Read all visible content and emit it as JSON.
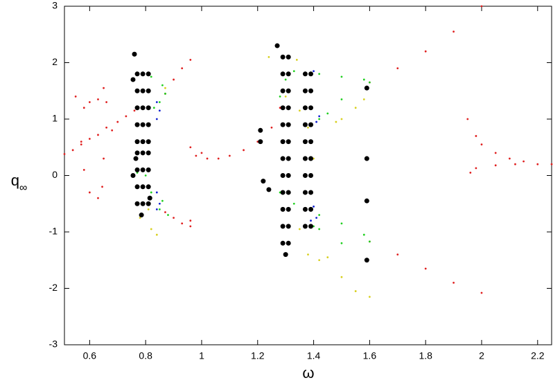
{
  "chart_data": {
    "type": "scatter",
    "xlabel": "ω",
    "ylabel": "q",
    "ylabel_subscript": "∞",
    "xlim": [
      0.51,
      2.25
    ],
    "ylim": [
      -3,
      3
    ],
    "xticks": [
      0.6,
      0.8,
      1,
      1.2,
      1.4,
      1.6,
      1.8,
      2,
      2.2
    ],
    "yticks": [
      -3,
      -2,
      -1,
      0,
      1,
      2,
      3
    ],
    "grid": false,
    "series": [
      {
        "color": "#e02020",
        "x": [
          0.51,
          0.54,
          0.57,
          0.6,
          0.63,
          0.66,
          0.7,
          0.73,
          0.76,
          0.55,
          0.57,
          0.58,
          0.6,
          0.63,
          0.645,
          0.65,
          0.58,
          0.6,
          0.63,
          0.65,
          0.66,
          0.68,
          0.87,
          0.9,
          0.93,
          0.96,
          0.87,
          0.9,
          0.93,
          0.96,
          0.96,
          0.96,
          0.98,
          1.0,
          1.02,
          1.06,
          1.1,
          1.15,
          1.2,
          1.25,
          1.28,
          1.6,
          1.7,
          1.8,
          1.9,
          2.0,
          1.6,
          1.7,
          1.8,
          1.9,
          2.0,
          1.95,
          1.98,
          2.0,
          2.05,
          2.1,
          2.15,
          2.2,
          2.25,
          1.96,
          1.98,
          2.05,
          2.12
        ],
        "values": [
          0.38,
          0.45,
          0.55,
          0.65,
          0.72,
          0.85,
          0.95,
          1.05,
          1.15,
          1.4,
          0.6,
          0.1,
          -0.3,
          -0.4,
          -0.2,
          0.3,
          1.2,
          1.3,
          1.35,
          1.55,
          1.3,
          0.8,
          1.45,
          1.7,
          1.9,
          2.05,
          -0.65,
          -0.75,
          -0.85,
          -0.9,
          -0.8,
          0.5,
          0.35,
          0.4,
          0.3,
          0.3,
          0.35,
          0.45,
          0.6,
          0.85,
          1.2,
          1.65,
          1.9,
          2.2,
          2.55,
          3.0,
          -1.17,
          -1.4,
          -1.65,
          -1.9,
          -2.08,
          1.0,
          0.7,
          0.55,
          0.4,
          0.3,
          0.25,
          0.2,
          0.2,
          0.05,
          0.13,
          0.18,
          0.2
        ]
      },
      {
        "color": "#20d020",
        "x": [
          0.82,
          0.86,
          0.87,
          0.85,
          0.83,
          0.77,
          0.8,
          0.82,
          0.86,
          0.88,
          0.85,
          1.3,
          1.28,
          1.33,
          1.42,
          1.5,
          1.58,
          1.6,
          1.5,
          1.45,
          1.42,
          1.28,
          1.33,
          1.42,
          1.5,
          1.58,
          1.6,
          1.5,
          1.42,
          1.4
        ],
        "values": [
          1.75,
          1.6,
          1.45,
          1.3,
          1.2,
          0.05,
          0.0,
          -0.3,
          -0.45,
          -0.7,
          -0.6,
          1.7,
          1.4,
          1.85,
          1.8,
          1.75,
          1.7,
          1.65,
          1.35,
          1.1,
          1.0,
          -0.3,
          -0.5,
          -0.7,
          -0.85,
          -1.05,
          -1.17,
          -1.2,
          -0.95,
          -0.9
        ]
      },
      {
        "color": "#1020d0",
        "x": [
          0.84,
          0.85,
          0.84,
          0.84,
          0.85,
          0.84,
          1.4,
          1.42,
          1.41,
          1.4,
          1.41,
          1.39
        ],
        "values": [
          1.0,
          1.15,
          1.3,
          -0.3,
          -0.5,
          -0.6,
          1.85,
          1.05,
          0.95,
          -0.55,
          -0.75,
          -0.8
        ]
      },
      {
        "color": "#d8d020",
        "x": [
          0.78,
          0.82,
          0.84,
          0.81,
          1.24,
          1.3,
          1.34,
          1.35,
          1.38,
          1.4,
          1.35,
          1.38,
          1.42,
          1.45,
          1.5,
          1.55,
          1.58,
          1.5,
          1.55,
          1.6,
          0.87,
          1.48
        ],
        "values": [
          -0.75,
          -0.95,
          -1.05,
          -0.6,
          2.1,
          1.4,
          2.05,
          1.15,
          0.85,
          0.3,
          -0.95,
          -1.4,
          -1.5,
          -1.45,
          1.0,
          1.2,
          1.35,
          -1.8,
          -2.05,
          -2.15,
          1.55,
          0.95
        ]
      },
      {
        "color": "#000000",
        "x": [
          0.77,
          0.77,
          0.77,
          0.77,
          0.77,
          0.77,
          0.77,
          0.77,
          0.77,
          0.79,
          0.79,
          0.79,
          0.79,
          0.79,
          0.79,
          0.79,
          0.79,
          0.79,
          0.81,
          0.81,
          0.81,
          0.81,
          0.81,
          0.81,
          0.81,
          0.81,
          0.81,
          0.76,
          0.755,
          0.765,
          0.755,
          0.815,
          0.785,
          1.29,
          1.29,
          1.29,
          1.29,
          1.29,
          1.29,
          1.29,
          1.29,
          1.29,
          1.29,
          1.29,
          1.29,
          1.31,
          1.31,
          1.31,
          1.31,
          1.31,
          1.31,
          1.31,
          1.31,
          1.31,
          1.31,
          1.31,
          1.31,
          1.27,
          1.3,
          1.37,
          1.37,
          1.37,
          1.37,
          1.37,
          1.37,
          1.37,
          1.37,
          1.37,
          1.37,
          1.39,
          1.39,
          1.39,
          1.39,
          1.39,
          1.39,
          1.39,
          1.39,
          1.39,
          1.39,
          1.21,
          1.21,
          1.22,
          1.59,
          1.59,
          1.59,
          1.59,
          1.24
        ],
        "values": [
          1.8,
          1.5,
          1.2,
          0.9,
          0.6,
          0.4,
          0.1,
          -0.2,
          -0.5,
          1.8,
          1.5,
          1.2,
          0.9,
          0.6,
          0.4,
          0.1,
          -0.2,
          -0.5,
          1.8,
          1.5,
          1.2,
          0.9,
          0.6,
          0.4,
          0.1,
          -0.2,
          -0.5,
          2.15,
          1.7,
          0.3,
          0.0,
          -0.4,
          -0.7,
          2.1,
          1.8,
          1.5,
          1.2,
          0.9,
          0.6,
          0.3,
          0,
          -0.3,
          -0.6,
          -0.9,
          -1.2,
          2.1,
          1.8,
          1.5,
          1.2,
          0.9,
          0.6,
          0.3,
          0,
          -0.3,
          -0.6,
          -0.9,
          -1.2,
          2.3,
          -1.4,
          1.8,
          1.5,
          1.2,
          0.9,
          0.6,
          0.3,
          0,
          -0.3,
          -0.6,
          -0.9,
          1.8,
          1.5,
          1.2,
          0.9,
          0.6,
          0.3,
          0,
          -0.3,
          -0.6,
          -0.9,
          0.6,
          0.8,
          -0.1,
          -0.45,
          -1.5,
          0.3,
          1.55,
          -0.25
        ]
      }
    ]
  }
}
